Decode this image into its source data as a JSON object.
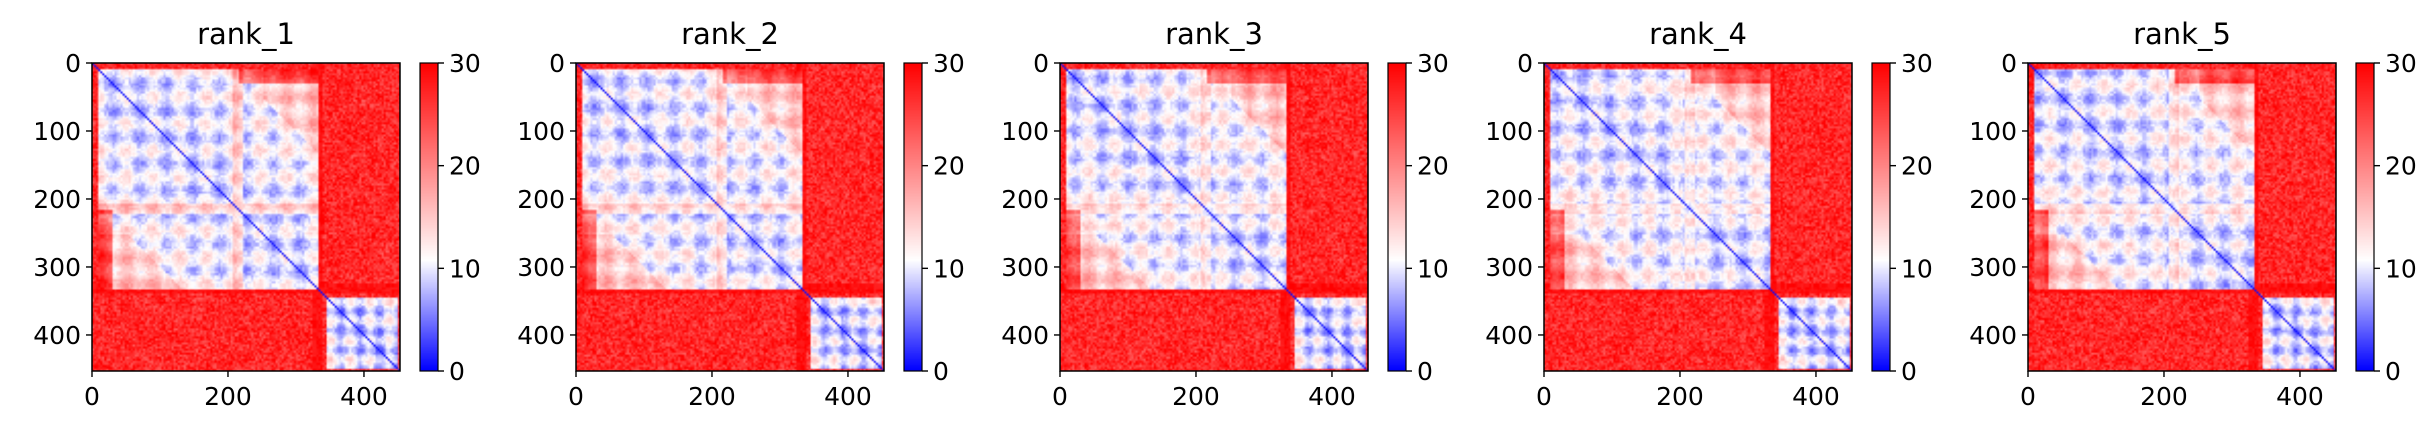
{
  "chart_data": [
    {
      "type": "heatmap",
      "title": "rank_1",
      "variant": 0,
      "x_ticks": [
        "0",
        "200",
        "400"
      ],
      "y_ticks": [
        "0",
        "100",
        "200",
        "300",
        "400"
      ],
      "xlim": [
        0,
        453
      ],
      "ylim": [
        453,
        0
      ],
      "colorbar": {
        "ticks": [
          "0",
          "10",
          "20",
          "30"
        ],
        "range": [
          0,
          30
        ],
        "colormap": "bwr"
      }
    },
    {
      "type": "heatmap",
      "title": "rank_2",
      "variant": 1,
      "x_ticks": [
        "0",
        "200",
        "400"
      ],
      "y_ticks": [
        "0",
        "100",
        "200",
        "300",
        "400"
      ],
      "xlim": [
        0,
        453
      ],
      "ylim": [
        453,
        0
      ],
      "colorbar": {
        "ticks": [
          "0",
          "10",
          "20",
          "30"
        ],
        "range": [
          0,
          30
        ],
        "colormap": "bwr"
      }
    },
    {
      "type": "heatmap",
      "title": "rank_3",
      "variant": 2,
      "x_ticks": [
        "0",
        "200",
        "400"
      ],
      "y_ticks": [
        "0",
        "100",
        "200",
        "300",
        "400"
      ],
      "xlim": [
        0,
        453
      ],
      "ylim": [
        453,
        0
      ],
      "colorbar": {
        "ticks": [
          "0",
          "10",
          "20",
          "30"
        ],
        "range": [
          0,
          30
        ],
        "colormap": "bwr"
      }
    },
    {
      "type": "heatmap",
      "title": "rank_4",
      "variant": 3,
      "x_ticks": [
        "0",
        "200",
        "400"
      ],
      "y_ticks": [
        "0",
        "100",
        "200",
        "300",
        "400"
      ],
      "xlim": [
        0,
        453
      ],
      "ylim": [
        453,
        0
      ],
      "colorbar": {
        "ticks": [
          "0",
          "10",
          "20",
          "30"
        ],
        "range": [
          0,
          30
        ],
        "colormap": "bwr"
      }
    },
    {
      "type": "heatmap",
      "title": "rank_5",
      "variant": 4,
      "x_ticks": [
        "0",
        "200",
        "400"
      ],
      "y_ticks": [
        "0",
        "100",
        "200",
        "300",
        "400"
      ],
      "xlim": [
        0,
        453
      ],
      "ylim": [
        453,
        0
      ],
      "colorbar": {
        "ticks": [
          "0",
          "10",
          "20",
          "30"
        ],
        "range": [
          0,
          30
        ],
        "colormap": "bwr"
      }
    }
  ],
  "colors": {
    "low": "#0000ff",
    "mid": "#ffffff",
    "high": "#ff0000"
  }
}
